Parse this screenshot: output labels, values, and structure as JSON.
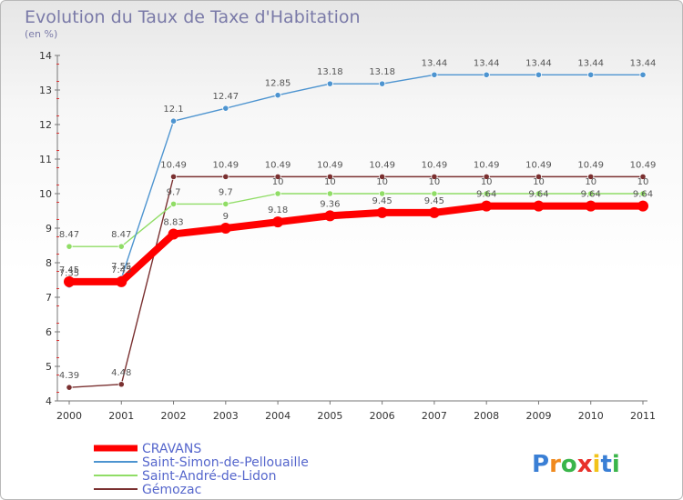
{
  "chart_data": {
    "type": "line",
    "title": "Evolution du Taux de Taxe d'Habitation",
    "subtitle": "(en %)",
    "x": [
      "2000",
      "2001",
      "2002",
      "2003",
      "2004",
      "2005",
      "2006",
      "2007",
      "2008",
      "2009",
      "2010",
      "2011"
    ],
    "ylim": [
      4,
      14
    ],
    "yticks": [
      4,
      5,
      6,
      7,
      8,
      9,
      10,
      11,
      12,
      13,
      14
    ],
    "grid": false,
    "legend_position": "bottom-left",
    "series": [
      {
        "name": "CRAVANS",
        "color": "#ff0000",
        "values": [
          7.45,
          7.45,
          8.83,
          9,
          9.18,
          9.36,
          9.45,
          9.45,
          9.64,
          9.64,
          9.64,
          9.64
        ],
        "labels": [
          "7.45",
          "7.45",
          "8.83",
          "9",
          "9.18",
          "9.36",
          "9.45",
          "9.45",
          "9.64",
          "9.64",
          "9.64",
          "9.64"
        ]
      },
      {
        "name": "Saint-Simon-de-Pellouaille",
        "color": "#4d94d0",
        "values": [
          7.35,
          7.55,
          12.1,
          12.47,
          12.85,
          13.18,
          13.18,
          13.44,
          13.44,
          13.44,
          13.44,
          13.44
        ],
        "labels": [
          "7.35",
          "7.55",
          "12.1",
          "12.47",
          "12.85",
          "13.18",
          "13.18",
          "13.44",
          "13.44",
          "13.44",
          "13.44",
          "13.44"
        ]
      },
      {
        "name": "Saint-André-de-Lidon",
        "color": "#90dd66",
        "values": [
          8.47,
          8.47,
          9.7,
          9.7,
          10,
          10,
          10,
          10,
          10,
          10,
          10,
          10
        ],
        "labels": [
          "8.47",
          "8.47",
          "9.7",
          "9.7",
          "10",
          "10",
          "10",
          "10",
          "10",
          "10",
          "10",
          "10"
        ]
      },
      {
        "name": "Gémozac",
        "color": "#7a3030",
        "values": [
          4.39,
          4.48,
          10.49,
          10.49,
          10.49,
          10.49,
          10.49,
          10.49,
          10.49,
          10.49,
          10.49,
          10.49
        ],
        "labels": [
          "4.39",
          "4.48",
          "10.49",
          "10.49",
          "10.49",
          "10.49",
          "10.49",
          "10.49",
          "10.49",
          "10.49",
          "10.49",
          "10.49"
        ]
      }
    ]
  },
  "brand": {
    "letters": [
      "P",
      "r",
      "o",
      "x",
      "i",
      "t",
      "i"
    ],
    "colors": [
      "#3a7fd5",
      "#f08a1e",
      "#3ab54a",
      "#e8312a",
      "#f2c318",
      "#3a7fd5",
      "#3ab54a"
    ]
  }
}
